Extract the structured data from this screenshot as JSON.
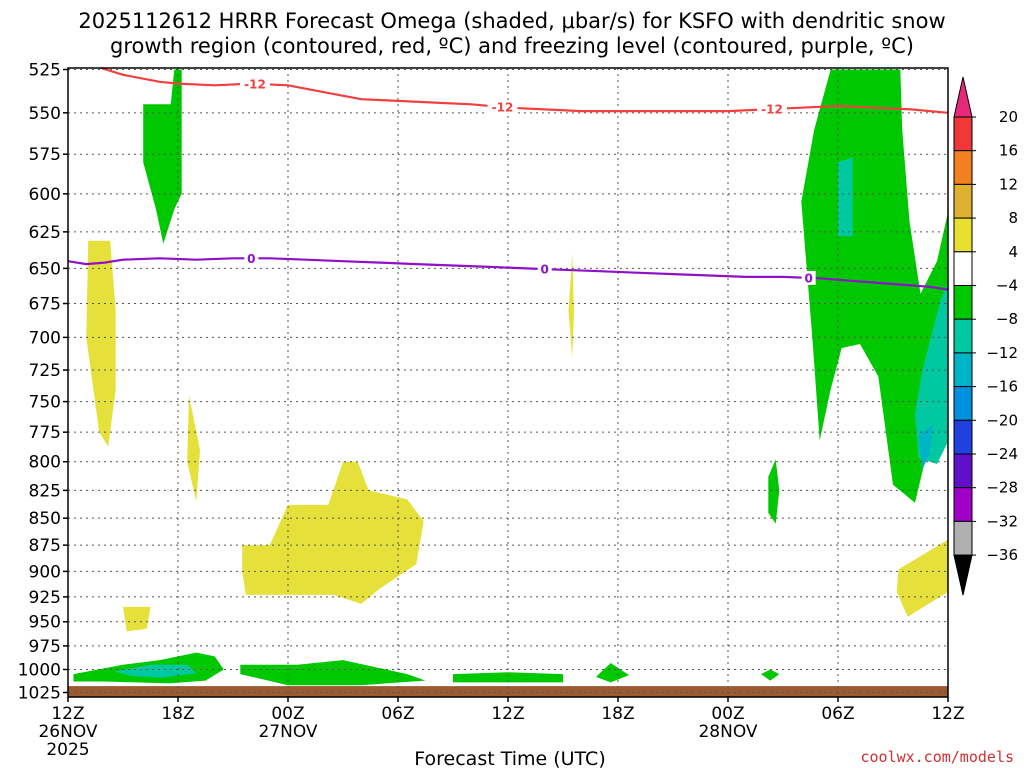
{
  "chart_data": {
    "type": "heatmap",
    "title_line1": "2025112612 HRRR Forecast Omega (shaded, μbar/s) for KSFO with dendritic snow",
    "title_line2": "growth region (contoured, red, ºC) and freezing level (contoured, purple, ºC)",
    "xlabel": "Forecast Time (UTC)",
    "credit": "coolwx.com/models",
    "x_range_hours": [
      0,
      48
    ],
    "y_range_mb": [
      525,
      1030
    ],
    "y_scale": "log-pressure",
    "y_ticks": [
      525,
      550,
      575,
      600,
      625,
      650,
      675,
      700,
      725,
      750,
      775,
      800,
      825,
      850,
      875,
      900,
      925,
      950,
      975,
      1000,
      1025
    ],
    "x_ticks": [
      {
        "h": 0,
        "label": "12Z",
        "sub": "26NOV",
        "year": "2025"
      },
      {
        "h": 6,
        "label": "18Z"
      },
      {
        "h": 12,
        "label": "00Z",
        "sub": "27NOV"
      },
      {
        "h": 18,
        "label": "06Z"
      },
      {
        "h": 24,
        "label": "12Z"
      },
      {
        "h": 30,
        "label": "18Z"
      },
      {
        "h": 36,
        "label": "00Z",
        "sub": "28NOV"
      },
      {
        "h": 42,
        "label": "06Z"
      },
      {
        "h": 48,
        "label": "12Z"
      }
    ],
    "colorbar": {
      "ticks": [
        "20",
        "16",
        "12",
        "8",
        "4",
        "−4",
        "−8",
        "−12",
        "−16",
        "−20",
        "−24",
        "−28",
        "−32",
        "−36"
      ],
      "colors": [
        "#e8287a",
        "#f03838",
        "#f08020",
        "#e0b030",
        "#e8e030",
        "#ffffff",
        "#00c800",
        "#00c8a0",
        "#00b4c8",
        "#0090e0",
        "#2040e0",
        "#6010c8",
        "#a000c8",
        "#b0b0b0",
        "#000000"
      ]
    },
    "contour_minus12": {
      "color": "#f04040",
      "label": "-12",
      "points_h_mb": [
        [
          1.8,
          524
        ],
        [
          3,
          528
        ],
        [
          5,
          532
        ],
        [
          6,
          533
        ],
        [
          8,
          534
        ],
        [
          10,
          533
        ],
        [
          12,
          534
        ],
        [
          14,
          538
        ],
        [
          16,
          542
        ],
        [
          18,
          543
        ],
        [
          20,
          544
        ],
        [
          22,
          545
        ],
        [
          24,
          547
        ],
        [
          26,
          548
        ],
        [
          28,
          549
        ],
        [
          30,
          549
        ],
        [
          32,
          549
        ],
        [
          34,
          549
        ],
        [
          36,
          549
        ],
        [
          38,
          548
        ],
        [
          40,
          547
        ],
        [
          42,
          546
        ],
        [
          44,
          547
        ],
        [
          46,
          548
        ],
        [
          48,
          550
        ]
      ],
      "label_positions_h": [
        10.2,
        23.7,
        38.4
      ]
    },
    "contour_zero": {
      "color": "#9010c8",
      "label": "0",
      "points_h_mb": [
        [
          0,
          645
        ],
        [
          1,
          647
        ],
        [
          2,
          646
        ],
        [
          3,
          644
        ],
        [
          5,
          643
        ],
        [
          7,
          644
        ],
        [
          9,
          643
        ],
        [
          11,
          643
        ],
        [
          13,
          644
        ],
        [
          15,
          645
        ],
        [
          17,
          646
        ],
        [
          19,
          647
        ],
        [
          21,
          648
        ],
        [
          23,
          649
        ],
        [
          25,
          650
        ],
        [
          27,
          651
        ],
        [
          29,
          652
        ],
        [
          31,
          653
        ],
        [
          33,
          654
        ],
        [
          35,
          655
        ],
        [
          37,
          656
        ],
        [
          39,
          656
        ],
        [
          41,
          657
        ],
        [
          43,
          659
        ],
        [
          45,
          661
        ],
        [
          47,
          663
        ],
        [
          48,
          665
        ]
      ],
      "label_positions_h": [
        10.0,
        26.0,
        40.4
      ]
    },
    "omega_regions": [
      {
        "level": "4",
        "points_h_mb": [
          [
            1.1,
            631
          ],
          [
            2.3,
            631
          ],
          [
            2.6,
            680
          ],
          [
            2.6,
            740
          ],
          [
            2.2,
            787
          ],
          [
            1.7,
            775
          ],
          [
            1.0,
            700
          ]
        ]
      },
      {
        "level": "4",
        "points_h_mb": [
          [
            6.6,
            745
          ],
          [
            7.2,
            790
          ],
          [
            7.0,
            835
          ],
          [
            6.5,
            800
          ]
        ]
      },
      {
        "level": "4",
        "points_h_mb": [
          [
            3.0,
            935
          ],
          [
            4.5,
            935
          ],
          [
            4.3,
            957
          ],
          [
            3.2,
            960
          ]
        ]
      },
      {
        "level": "4",
        "points_h_mb": [
          [
            9.5,
            875
          ],
          [
            11.0,
            875
          ],
          [
            12.0,
            838
          ],
          [
            14.2,
            838
          ],
          [
            15.0,
            800
          ],
          [
            15.8,
            800
          ],
          [
            16.4,
            825
          ],
          [
            18.5,
            833
          ],
          [
            19.4,
            853
          ],
          [
            19.0,
            893
          ],
          [
            17.0,
            917
          ],
          [
            16.0,
            932
          ],
          [
            14.5,
            923
          ],
          [
            9.7,
            923
          ],
          [
            9.5,
            900
          ]
        ]
      },
      {
        "level": "4",
        "points_h_mb": [
          [
            27.5,
            640
          ],
          [
            27.6,
            680
          ],
          [
            27.5,
            715
          ],
          [
            27.3,
            680
          ]
        ]
      },
      {
        "level": "4",
        "points_h_mb": [
          [
            45.3,
            898
          ],
          [
            48,
            870
          ],
          [
            48,
            920
          ],
          [
            45.8,
            945
          ],
          [
            45.2,
            920
          ]
        ]
      },
      {
        "level": "-4",
        "points_h_mb": [
          [
            4.1,
            545
          ],
          [
            5.6,
            545
          ],
          [
            5.8,
            525
          ],
          [
            6.2,
            525
          ],
          [
            6.2,
            600
          ],
          [
            5.8,
            610
          ],
          [
            5.2,
            633
          ],
          [
            4.8,
            610
          ],
          [
            4.1,
            580
          ]
        ]
      },
      {
        "level": "-4",
        "points_h_mb": [
          [
            0.3,
            1005
          ],
          [
            3.0,
            995
          ],
          [
            5.0,
            990
          ],
          [
            7.0,
            982
          ],
          [
            8.0,
            986
          ],
          [
            8.5,
            1000
          ],
          [
            7.5,
            1012
          ],
          [
            5.5,
            1015
          ],
          [
            2.0,
            1013
          ],
          [
            0.3,
            1013
          ]
        ]
      },
      {
        "level": "-4",
        "points_h_mb": [
          [
            9.4,
            995
          ],
          [
            12.5,
            995
          ],
          [
            15.0,
            990
          ],
          [
            18.5,
            1005
          ],
          [
            19.5,
            1012
          ],
          [
            16,
            1017
          ],
          [
            12,
            1017
          ],
          [
            9.4,
            1005
          ]
        ]
      },
      {
        "level": "-4",
        "points_h_mb": [
          [
            21.0,
            1005
          ],
          [
            24.0,
            1003
          ],
          [
            27.0,
            1005
          ],
          [
            27,
            1014
          ],
          [
            21,
            1014
          ]
        ]
      },
      {
        "level": "-4",
        "points_h_mb": [
          [
            28.8,
            1008
          ],
          [
            29.6,
            993
          ],
          [
            30.6,
            1006
          ],
          [
            29.6,
            1014
          ]
        ]
      },
      {
        "level": "-4",
        "points_h_mb": [
          [
            37.8,
            1005
          ],
          [
            38.3,
            1000
          ],
          [
            38.8,
            1005
          ],
          [
            38.3,
            1012
          ]
        ]
      },
      {
        "level": "-4",
        "points_h_mb": [
          [
            38.2,
            813
          ],
          [
            38.6,
            798
          ],
          [
            38.8,
            825
          ],
          [
            38.6,
            855
          ],
          [
            38.2,
            845
          ]
        ]
      },
      {
        "level": "-4",
        "points_h_mb": [
          [
            41.6,
            525
          ],
          [
            45.4,
            525
          ],
          [
            45.5,
            560
          ],
          [
            45.9,
            618
          ],
          [
            46.5,
            668
          ],
          [
            47.4,
            645
          ],
          [
            48,
            612
          ],
          [
            48,
            710
          ],
          [
            47.2,
            770
          ],
          [
            46.2,
            836
          ],
          [
            45.0,
            820
          ],
          [
            44.2,
            730
          ],
          [
            43.2,
            705
          ],
          [
            42.2,
            708
          ],
          [
            41.6,
            740
          ],
          [
            41.0,
            782
          ],
          [
            40.6,
            700
          ],
          [
            40.0,
            605
          ],
          [
            40.7,
            560
          ]
        ]
      },
      {
        "level": "-8",
        "points_h_mb": [
          [
            42.0,
            580
          ],
          [
            42.8,
            577
          ],
          [
            42.8,
            628
          ],
          [
            42.0,
            628
          ]
        ]
      },
      {
        "level": "-8",
        "points_h_mb": [
          [
            47.6,
            672
          ],
          [
            48,
            660
          ],
          [
            48,
            783
          ],
          [
            47.4,
            802
          ],
          [
            46.4,
            797
          ],
          [
            46.2,
            760
          ],
          [
            46.6,
            725
          ]
        ]
      },
      {
        "level": "-8",
        "points_h_mb": [
          [
            2.5,
            1002
          ],
          [
            4.5,
            995
          ],
          [
            6.5,
            995
          ],
          [
            7.0,
            1004
          ],
          [
            5.0,
            1009
          ],
          [
            3.5,
            1007
          ]
        ]
      },
      {
        "level": "-12",
        "points_h_mb": [
          [
            46.4,
            778
          ],
          [
            47.2,
            768
          ],
          [
            47.0,
            793
          ],
          [
            46.6,
            807
          ]
        ]
      }
    ],
    "terrain_top_mb": 1018,
    "terrain_color": "#9a5a33"
  }
}
